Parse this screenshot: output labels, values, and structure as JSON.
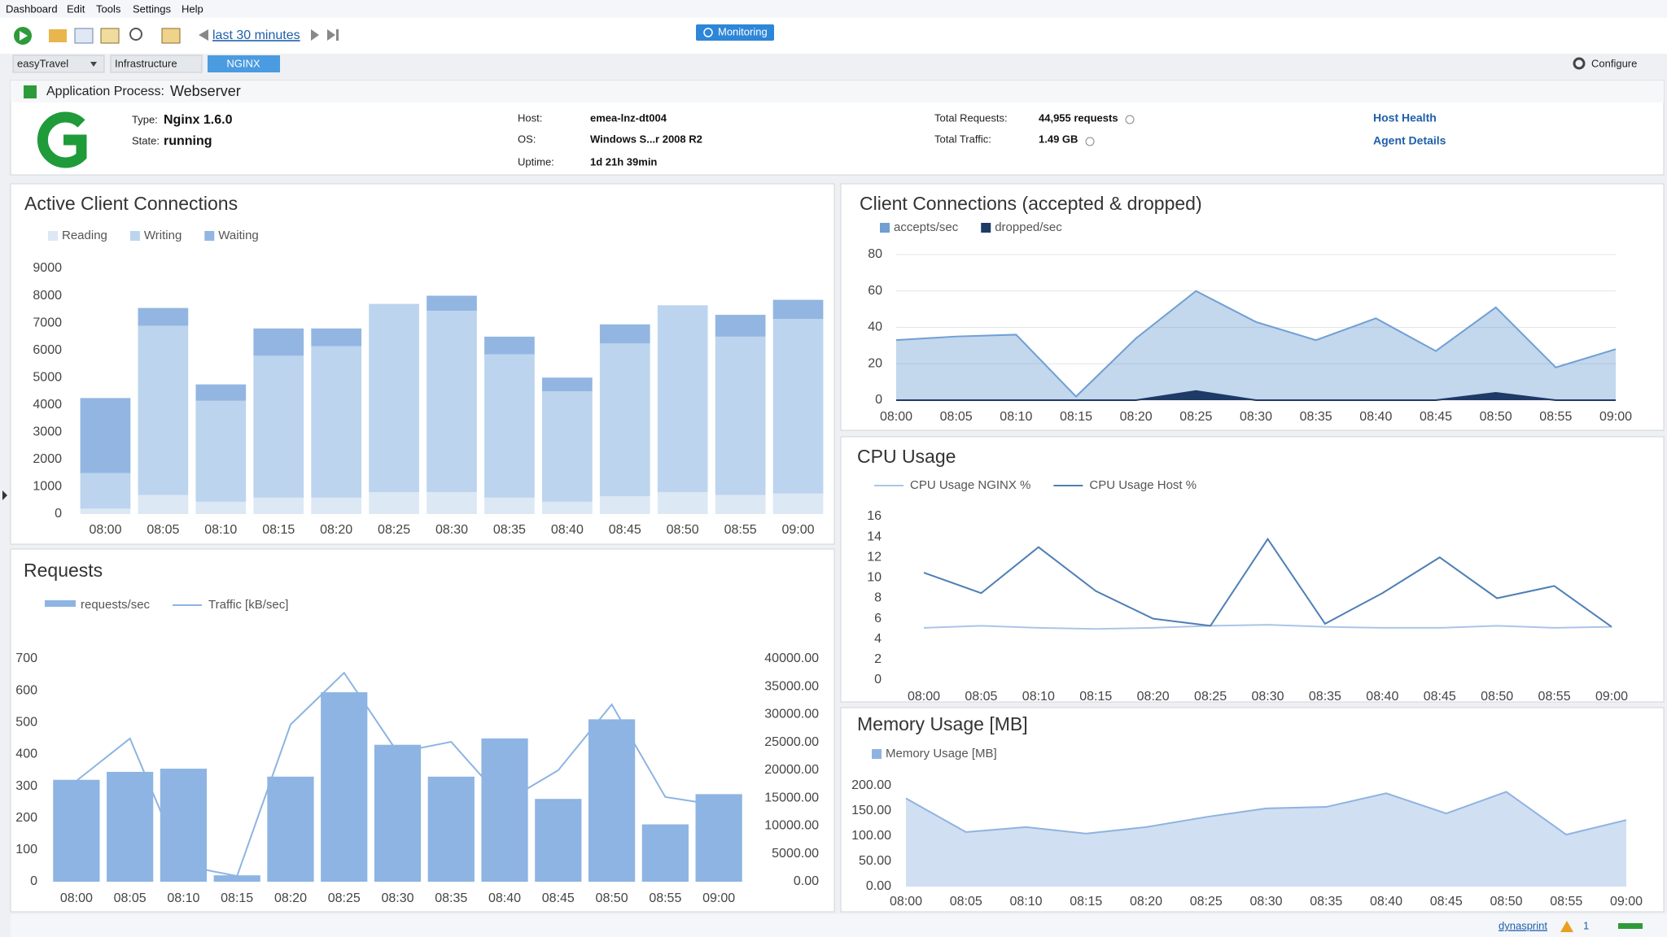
{
  "menu": [
    "Dashboard",
    "Edit",
    "Tools",
    "Settings",
    "Help"
  ],
  "toolbar": {
    "timeframe": "last 30 minutes",
    "mode": "Monitoring"
  },
  "breadcrumb": [
    "easyTravel",
    "Infrastructure",
    "NGINX"
  ],
  "configure": "Configure",
  "process": {
    "label": "Application Process:",
    "name": "Webserver",
    "details": [
      {
        "label": "Type:",
        "value": "Nginx 1.6.0"
      },
      {
        "label": "State:",
        "value": "running"
      },
      {
        "label": "Host:",
        "value": "emea-lnz-dt004"
      },
      {
        "label": "OS:",
        "value": "Windows S...r 2008 R2"
      },
      {
        "label": "Uptime:",
        "value": "1d 21h 39min"
      },
      {
        "label": "Total Requests:",
        "value": "44,955 requests"
      },
      {
        "label": "Total Traffic:",
        "value": "1.49 GB"
      }
    ],
    "links": [
      "Host Health",
      "Agent Details"
    ]
  },
  "charts": [
    {
      "type": "bar",
      "stacked": true,
      "title": "Active Client Connections",
      "grid": false,
      "categories": [
        "08:00",
        "08:05",
        "08:10",
        "08:15",
        "08:20",
        "08:25",
        "08:30",
        "08:35",
        "08:40",
        "08:45",
        "08:50",
        "08:55",
        "09:00"
      ],
      "series": [
        {
          "name": "Reading",
          "color": "#dde8f5",
          "values": [
            200,
            700,
            450,
            600,
            600,
            800,
            800,
            600,
            450,
            650,
            800,
            700,
            750
          ]
        },
        {
          "name": "Writing",
          "color": "#bcd4ee",
          "values": [
            1300,
            6200,
            3700,
            5200,
            5550,
            6900,
            6650,
            5250,
            4050,
            5600,
            6850,
            5800,
            6400
          ]
        },
        {
          "name": "Waiting",
          "color": "#92b6e1",
          "values": [
            2750,
            650,
            600,
            1000,
            650,
            0,
            550,
            650,
            500,
            700,
            0,
            800,
            700
          ]
        }
      ],
      "ylim": [
        0,
        9000
      ],
      "yticks": [
        0,
        1000,
        2000,
        3000,
        4000,
        5000,
        6000,
        7000,
        8000,
        9000
      ]
    },
    {
      "type": "area",
      "title": "Client Connections (accepted & dropped)",
      "grid": true,
      "categories": [
        "08:00",
        "08:05",
        "08:10",
        "08:15",
        "08:20",
        "08:25",
        "08:30",
        "08:35",
        "08:40",
        "08:45",
        "08:50",
        "08:55",
        "09:00"
      ],
      "series": [
        {
          "name": "accepts/sec",
          "color": "#6f9fd3",
          "values": [
            33,
            35,
            36,
            2,
            34,
            60,
            43,
            33,
            45,
            27,
            51,
            18,
            28
          ]
        },
        {
          "name": "dropped/sec",
          "color": "#1e3a66",
          "values": [
            0,
            0,
            0,
            0,
            0,
            5,
            0,
            0,
            0,
            0,
            4,
            0,
            0
          ]
        }
      ],
      "ylim": [
        0,
        80
      ],
      "yticks": [
        0,
        20,
        40,
        60,
        80
      ]
    },
    {
      "type": "line",
      "title": "CPU Usage",
      "grid": false,
      "categories": [
        "08:00",
        "08:05",
        "08:10",
        "08:15",
        "08:20",
        "08:25",
        "08:30",
        "08:35",
        "08:40",
        "08:45",
        "08:50",
        "08:55",
        "09:00"
      ],
      "series": [
        {
          "name": "CPU Usage NGINX  %",
          "color": "#a9c6e8",
          "values": [
            5.1,
            5.3,
            5.1,
            5.0,
            5.1,
            5.3,
            5.4,
            5.2,
            5.1,
            5.1,
            5.3,
            5.1,
            5.2
          ]
        },
        {
          "name": "CPU Usage Host %",
          "color": "#4f7fb5",
          "values": [
            10.5,
            8.5,
            13,
            8.7,
            6,
            5.3,
            13.8,
            5.5,
            8.5,
            12,
            8,
            9.2,
            5.2
          ]
        }
      ],
      "ylim": [
        0,
        16
      ],
      "yticks": [
        0,
        2,
        4,
        6,
        8,
        10,
        12,
        14,
        16
      ]
    },
    {
      "type": "area",
      "title": "Memory Usage [MB]",
      "grid": false,
      "categories": [
        "08:00",
        "08:05",
        "08:10",
        "08:15",
        "08:20",
        "08:25",
        "08:30",
        "08:35",
        "08:40",
        "08:45",
        "08:50",
        "08:55",
        "09:00"
      ],
      "series": [
        {
          "name": "Memory Usage [MB]",
          "color": "#8fb3e0",
          "values": [
            175,
            108,
            118,
            105,
            118,
            138,
            155,
            158,
            185,
            145,
            188,
            103,
            132
          ]
        }
      ],
      "ylim": [
        0,
        200
      ],
      "yticks": [
        {
          "value": 0,
          "label": "0.00"
        },
        {
          "value": 50,
          "label": "50.00"
        },
        {
          "value": 100,
          "label": "100.00"
        },
        {
          "value": 150,
          "label": "150.00"
        },
        {
          "value": 200,
          "label": "200.00"
        }
      ]
    },
    {
      "type": "bar",
      "title": "Requests",
      "grid": false,
      "categories": [
        "08:00",
        "08:05",
        "08:10",
        "08:15",
        "08:20",
        "08:25",
        "08:30",
        "08:35",
        "08:40",
        "08:45",
        "08:50",
        "08:55",
        "09:00"
      ],
      "series": [
        {
          "name": "requests/sec",
          "color": "#8db4e2",
          "values": [
            320,
            345,
            355,
            20,
            330,
            595,
            430,
            330,
            450,
            260,
            510,
            180,
            275
          ]
        },
        {
          "name": "Traffic [kB/sec]",
          "color": "#8db4e2",
          "type": "line",
          "axis": "y2",
          "values": [
            18100,
            25700,
            2900,
            1000,
            28200,
            37500,
            23200,
            25100,
            14300,
            20000,
            31800,
            15200,
            13700
          ]
        }
      ],
      "ylim": [
        0,
        700
      ],
      "yticks": [
        0,
        100,
        200,
        300,
        400,
        500,
        600,
        700
      ],
      "y2lim": [
        0,
        40000
      ],
      "y2ticks": [
        {
          "value": 0,
          "label": "0.00"
        },
        {
          "value": 5000,
          "label": "5000.00"
        },
        {
          "value": 10000,
          "label": "10000.00"
        },
        {
          "value": 15000,
          "label": "15000.00"
        },
        {
          "value": 20000,
          "label": "20000.00"
        },
        {
          "value": 25000,
          "label": "25000.00"
        },
        {
          "value": 30000,
          "label": "30000.00"
        },
        {
          "value": 35000,
          "label": "35000.00"
        },
        {
          "value": 40000,
          "label": "40000.00"
        }
      ]
    }
  ],
  "status": {
    "user": "dynasprint",
    "alerts": "1"
  }
}
